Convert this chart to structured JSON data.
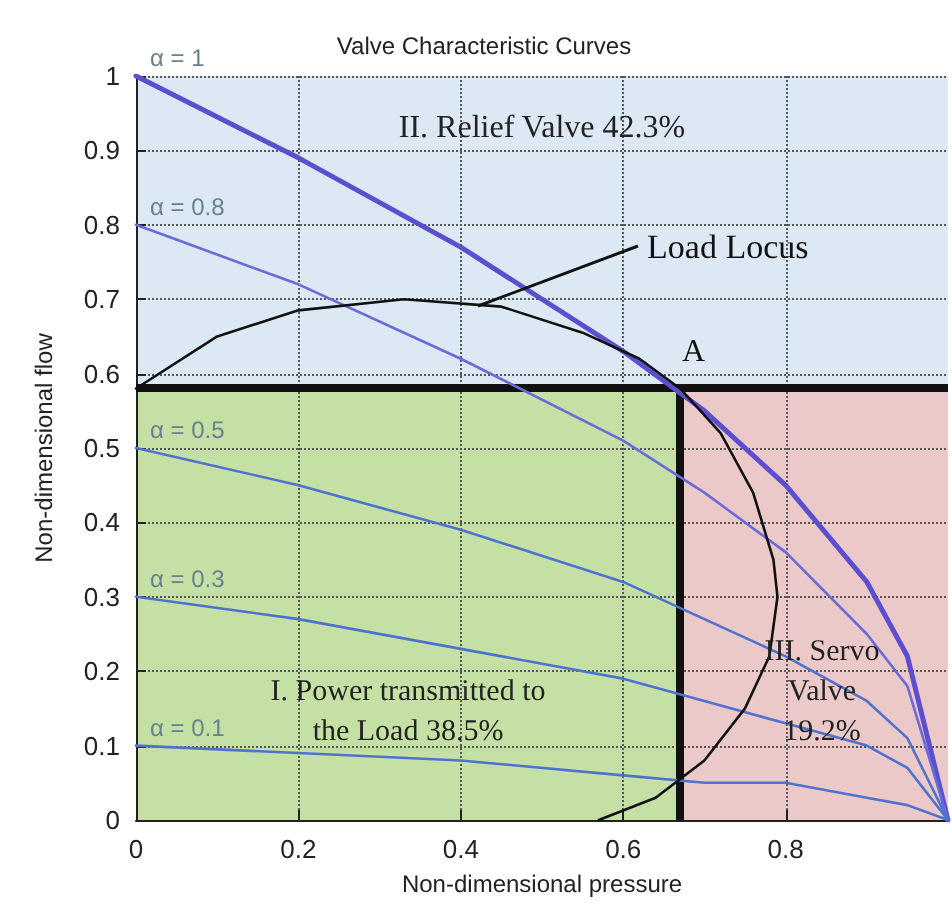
{
  "chart_data": {
    "type": "line",
    "title": "Valve Characteristic Curves",
    "xlabel": "Non-dimensional pressure",
    "ylabel": "Non-dimensional flow",
    "x": [
      0,
      0.2,
      0.4,
      0.6,
      0.7,
      0.8,
      0.9,
      0.95,
      1
    ],
    "series": [
      {
        "name": "α = 1",
        "color": "#5b4fd0",
        "values": [
          1,
          0.89,
          0.77,
          0.63,
          0.55,
          0.45,
          0.32,
          0.22,
          0
        ]
      },
      {
        "name": "α = 0.8",
        "color": "#6a6ad8",
        "values": [
          0.8,
          0.72,
          0.62,
          0.51,
          0.44,
          0.36,
          0.25,
          0.18,
          0
        ]
      },
      {
        "name": "α = 0.5",
        "color": "#4f72cf",
        "values": [
          0.5,
          0.45,
          0.39,
          0.32,
          0.27,
          0.22,
          0.16,
          0.11,
          0
        ]
      },
      {
        "name": "α = 0.3",
        "color": "#4f72cf",
        "values": [
          0.3,
          0.27,
          0.23,
          0.19,
          0.16,
          0.13,
          0.1,
          0.07,
          0
        ]
      },
      {
        "name": "α = 0.1",
        "color": "#4f72cf",
        "values": [
          0.1,
          0.09,
          0.08,
          0.06,
          0.05,
          0.05,
          0.03,
          0.02,
          0
        ]
      },
      {
        "type": "line",
        "color": "#111111",
        "x": [
          0,
          0.1,
          0.2,
          0.33,
          0.45,
          0.55,
          0.62,
          0.67,
          0.72,
          0.76,
          0.785,
          0.79,
          0.78,
          0.75,
          0.7,
          0.64,
          0.57
        ],
        "values": [
          0.58,
          0.65,
          0.685,
          0.7,
          0.69,
          0.655,
          0.62,
          0.58,
          0.52,
          0.44,
          0.35,
          0.3,
          0.22,
          0.15,
          0.08,
          0.03,
          0
        ]
      }
    ],
    "bands": [
      {
        "axis": "x",
        "from": 0,
        "to": 0.67,
        "label": "I. Power transmitted to\nthe Load 38.5%",
        "color": "#c5e0a5"
      },
      {
        "axis": "x",
        "from": 0.67,
        "to": 1,
        "label": "III. Servo\nValve\n19.2%",
        "color": "#ecc9c9"
      },
      {
        "axis": "y",
        "from": 0.58,
        "to": 1,
        "label": "II. Relief Valve 42.3%",
        "color": "#dce9f5"
      }
    ],
    "ref_lines": [
      {
        "axis": "y",
        "value": 0.58,
        "color": "#111111",
        "line_style": "solid"
      },
      {
        "axis": "x",
        "value": 0.67,
        "color": "#111111",
        "line_style": "solid"
      }
    ],
    "annotations": [
      {
        "text": "A",
        "x": 0.67,
        "y": 0.58
      },
      {
        "text": "Load Locus",
        "x": 0.42,
        "y": 0.69
      }
    ],
    "xlim": [
      0,
      1
    ],
    "xticks": [
      0,
      0.2,
      0.4,
      0.6,
      0.8
    ],
    "ylim": [
      0,
      1
    ],
    "yticks": [
      0,
      0.1,
      0.2,
      0.3,
      0.4,
      0.5,
      0.6,
      0.7,
      0.8,
      0.9,
      1
    ],
    "grid": true,
    "legend": false,
    "marker": "none",
    "line_style": "solid"
  }
}
